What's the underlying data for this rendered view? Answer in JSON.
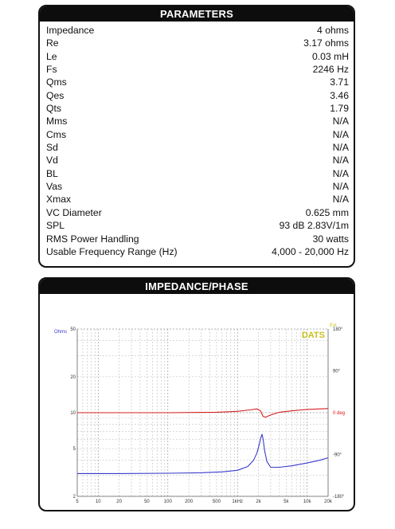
{
  "parameters": {
    "title": "PARAMETERS",
    "rows": [
      {
        "label": "Impedance",
        "value": "4 ohms"
      },
      {
        "label": "Re",
        "value": "3.17 ohms"
      },
      {
        "label": "Le",
        "value": "0.03 mH"
      },
      {
        "label": "Fs",
        "value": "2246 Hz"
      },
      {
        "label": "Qms",
        "value": "3.71"
      },
      {
        "label": "Qes",
        "value": "3.46"
      },
      {
        "label": "Qts",
        "value": "1.79"
      },
      {
        "label": "Mms",
        "value": "N/A"
      },
      {
        "label": "Cms",
        "value": "N/A"
      },
      {
        "label": "Sd",
        "value": "N/A"
      },
      {
        "label": "Vd",
        "value": "N/A"
      },
      {
        "label": "BL",
        "value": "N/A"
      },
      {
        "label": "Vas",
        "value": "N/A"
      },
      {
        "label": "Xmax",
        "value": "N/A"
      },
      {
        "label": "VC Diameter",
        "value": "0.625 mm"
      },
      {
        "label": "SPL",
        "value": "93 dB 2.83V/1m"
      },
      {
        "label": "RMS Power Handling",
        "value": "30 watts"
      },
      {
        "label": "Usable Frequency Range (Hz)",
        "value": "4,000 - 20,000 Hz"
      }
    ]
  },
  "impedance_panel": {
    "title": "IMPEDANCE/PHASE",
    "brand": "DATS",
    "left_unit": "Ohms",
    "right_unit": "Ext"
  },
  "colors": {
    "impedance": "#3a3acc",
    "phase": "#d42020",
    "brand": "#c8c020"
  },
  "chart_data": {
    "type": "line",
    "title": "IMPEDANCE/PHASE",
    "x_scale": "log",
    "xlim": [
      5,
      20000
    ],
    "x_ticks": [
      "5",
      "10",
      "20",
      "50",
      "100",
      "200",
      "500",
      "1kHz",
      "2k",
      "5k",
      "10k",
      "20k"
    ],
    "y_left": {
      "label": "Ohms",
      "scale": "log",
      "lim": [
        2,
        50
      ],
      "ticks": [
        "2",
        "5",
        "10",
        "20",
        "50"
      ]
    },
    "y_right": {
      "label": "Ext",
      "lim": [
        -180,
        180
      ],
      "ticks": [
        "180°",
        "90°",
        "0 deg",
        "-90°",
        "-180°"
      ]
    },
    "grid": true,
    "series": [
      {
        "axis": "left",
        "color": "#3a3acc",
        "points": [
          [
            5,
            3.1
          ],
          [
            20,
            3.1
          ],
          [
            100,
            3.12
          ],
          [
            300,
            3.15
          ],
          [
            600,
            3.2
          ],
          [
            1000,
            3.3
          ],
          [
            1400,
            3.55
          ],
          [
            1700,
            4.0
          ],
          [
            1900,
            4.6
          ],
          [
            2050,
            5.4
          ],
          [
            2150,
            6.1
          ],
          [
            2246,
            6.6
          ],
          [
            2330,
            6.0
          ],
          [
            2450,
            4.8
          ],
          [
            2650,
            3.9
          ],
          [
            3000,
            3.5
          ],
          [
            4000,
            3.5
          ],
          [
            6000,
            3.6
          ],
          [
            10000,
            3.8
          ],
          [
            15000,
            4.0
          ],
          [
            20000,
            4.2
          ]
        ]
      },
      {
        "axis": "right",
        "color": "#d42020",
        "points": [
          [
            5,
            0
          ],
          [
            100,
            0
          ],
          [
            500,
            1
          ],
          [
            1000,
            3
          ],
          [
            1500,
            6
          ],
          [
            1900,
            8
          ],
          [
            2150,
            4
          ],
          [
            2300,
            -7
          ],
          [
            2500,
            -10
          ],
          [
            3000,
            -5
          ],
          [
            4000,
            1
          ],
          [
            6000,
            4
          ],
          [
            10000,
            7
          ],
          [
            20000,
            9
          ]
        ]
      }
    ]
  }
}
